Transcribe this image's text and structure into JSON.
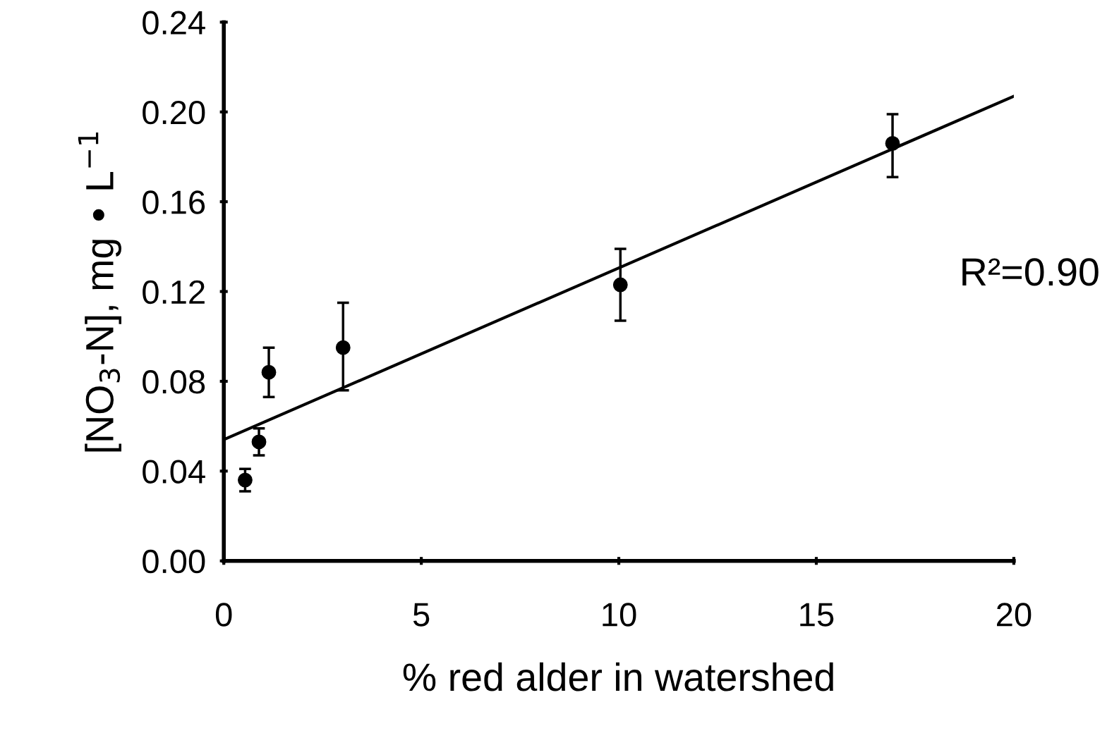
{
  "chart_data": {
    "type": "scatter",
    "xlabel": "% red alder in watershed",
    "ylabel": "[NO$_{3}$-N], mg • L$^{−1}$",
    "annotations": [
      "R²=0.90"
    ],
    "xlim": [
      0,
      20
    ],
    "xticks": [
      0,
      5,
      10,
      15,
      20
    ],
    "ylim": [
      0,
      0.24
    ],
    "yticks": [
      {
        "value": 0,
        "label": "0.00"
      },
      {
        "value": 0.04,
        "label": "0.04"
      },
      {
        "value": 0.08,
        "label": "0.08"
      },
      {
        "value": 0.12,
        "label": "0.12"
      },
      {
        "value": 0.16,
        "label": "0.16"
      },
      {
        "value": 0.2,
        "label": "0.20"
      },
      {
        "value": 0.24,
        "label": "0.24"
      }
    ],
    "grid": false,
    "series": [
      {
        "marker": "circle",
        "color": "#000000",
        "x": [
          0.54,
          0.89,
          1.14,
          3.02,
          10.04,
          16.93
        ],
        "values": [
          0.036,
          0.053,
          0.084,
          0.095,
          0.123,
          0.186
        ],
        "errors": [
          [
            0.031,
            0.041
          ],
          [
            0.047,
            0.059
          ],
          [
            0.073,
            0.095
          ],
          [
            0.076,
            0.115
          ],
          [
            0.107,
            0.139
          ],
          [
            0.171,
            0.199
          ]
        ]
      },
      {
        "type": "line",
        "color": "#000000",
        "x": [
          0,
          20
        ],
        "values": [
          0.054,
          0.207
        ],
        "line_style": "solid"
      }
    ]
  }
}
